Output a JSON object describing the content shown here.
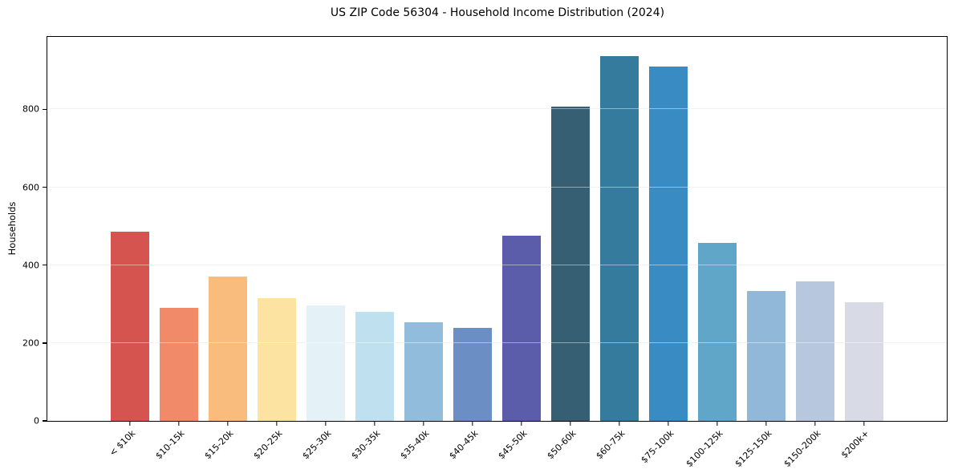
{
  "chart_data": {
    "type": "bar",
    "title": "US ZIP Code 56304 - Household Income Distribution (2024)",
    "xlabel": "",
    "ylabel": "Households",
    "categories": [
      "< $10k",
      "$10-15k",
      "$15-20k",
      "$20-25k",
      "$25-30k",
      "$30-35k",
      "$35-40k",
      "$40-45k",
      "$45-50k",
      "$50-60k",
      "$60-75k",
      "$75-100k",
      "$100-125k",
      "$125-150k",
      "$150-200k",
      "$200k+"
    ],
    "values": [
      485,
      290,
      370,
      314,
      296,
      280,
      254,
      238,
      475,
      806,
      937,
      909,
      458,
      334,
      359,
      305
    ],
    "bar_colors": [
      "#d6544f",
      "#f18a68",
      "#fabc7d",
      "#fde3a2",
      "#e4f1f6",
      "#bee0ef",
      "#92bcdb",
      "#6b8fc4",
      "#5b5caa",
      "#365f73",
      "#357b9e",
      "#398cc3",
      "#5fa6c9",
      "#92b8d9",
      "#b7c8de",
      "#d8dae6"
    ],
    "yticks": [
      0,
      200,
      400,
      600,
      800
    ],
    "ylim": [
      0,
      986
    ],
    "grid": "horizontal",
    "gridline_color": "#e7e7e7",
    "legend": "none",
    "x_tick_rotation_deg": 45,
    "background_color": "#ffffff",
    "text_color": "#000000"
  }
}
